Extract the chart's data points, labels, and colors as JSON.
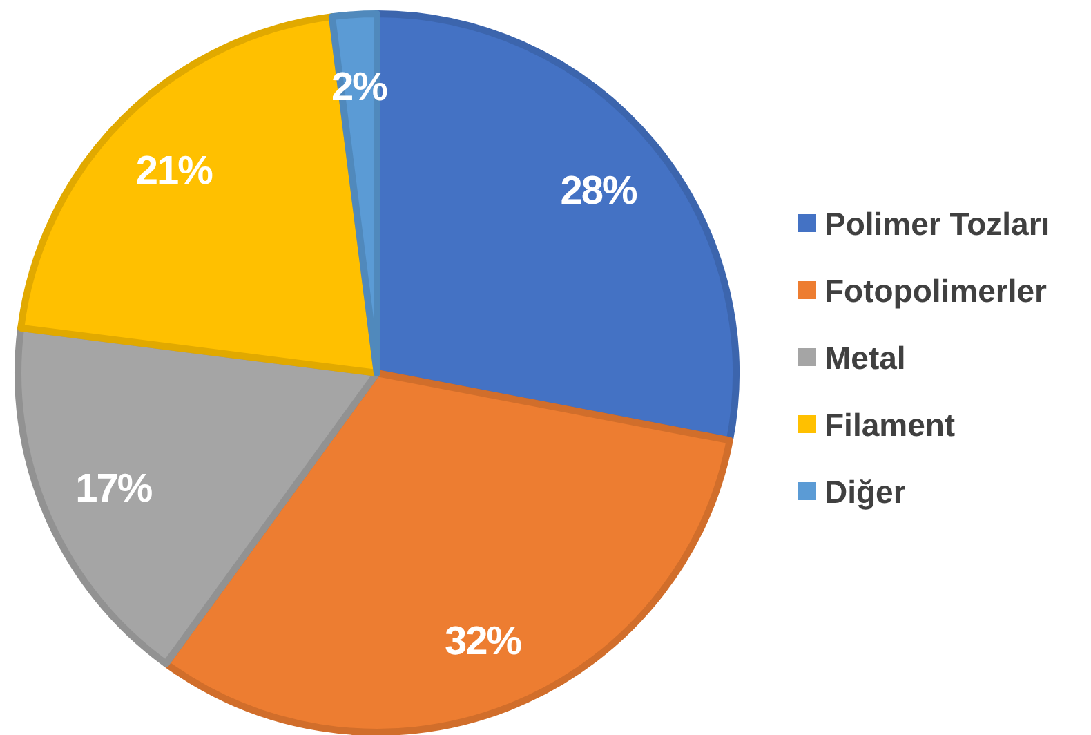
{
  "chart_data": {
    "type": "pie",
    "categories": [
      "Polimer Tozları",
      "Fotopolimerler",
      "Metal",
      "Filament",
      "Diğer"
    ],
    "values": [
      28,
      32,
      17,
      21,
      2
    ],
    "colors": [
      "#4472c4",
      "#ed7d31",
      "#a5a5a5",
      "#ffc000",
      "#5b9bd5"
    ],
    "value_labels": [
      "28%",
      "32%",
      "17%",
      "21%",
      "2%"
    ],
    "legend": "right"
  }
}
